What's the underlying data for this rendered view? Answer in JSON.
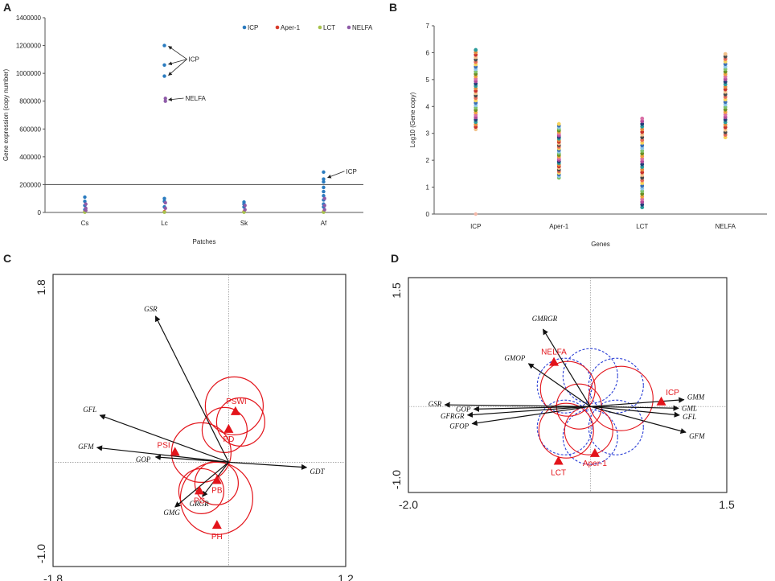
{
  "chart_data": [
    {
      "panel": "A",
      "type": "scatter",
      "title": "",
      "xlabel": "Patches",
      "ylabel": "Gene expression  (copy number)",
      "categories": [
        "Cs",
        "Lc",
        "Sk",
        "Af"
      ],
      "ylim": [
        0,
        1400000
      ],
      "yticks": [
        "0",
        "200000",
        "400000",
        "600000",
        "800000",
        "1000000",
        "1200000",
        "1400000"
      ],
      "threshold": 200000,
      "colors": {
        "ICP": "#2a7bbf",
        "Aper-1": "#d83a2a",
        "LCT": "#a6c24a",
        "NELFA": "#8e5ba8"
      },
      "series": [
        {
          "name": "ICP",
          "points": [
            [
              "Cs",
              110000
            ],
            [
              "Cs",
              80000
            ],
            [
              "Cs",
              50000
            ],
            [
              "Cs",
              20000
            ],
            [
              "Lc",
              1200000
            ],
            [
              "Lc",
              1060000
            ],
            [
              "Lc",
              980000
            ],
            [
              "Lc",
              100000
            ],
            [
              "Lc",
              80000
            ],
            [
              "Lc",
              40000
            ],
            [
              "Sk",
              75000
            ],
            [
              "Sk",
              60000
            ],
            [
              "Sk",
              40000
            ],
            [
              "Af",
              290000
            ],
            [
              "Af",
              240000
            ],
            [
              "Af",
              220000
            ],
            [
              "Af",
              180000
            ],
            [
              "Af",
              150000
            ],
            [
              "Af",
              120000
            ],
            [
              "Af",
              90000
            ],
            [
              "Af",
              60000
            ],
            [
              "Af",
              40000
            ]
          ]
        },
        {
          "name": "Aper-1",
          "points": [
            [
              "Cs",
              5000
            ],
            [
              "Lc",
              5000
            ],
            [
              "Sk",
              5000
            ],
            [
              "Af",
              5000
            ]
          ]
        },
        {
          "name": "LCT",
          "points": [
            [
              "Cs",
              2000
            ],
            [
              "Lc",
              2000
            ],
            [
              "Sk",
              2000
            ],
            [
              "Af",
              2000
            ]
          ]
        },
        {
          "name": "NELFA",
          "points": [
            [
              "Cs",
              60000
            ],
            [
              "Cs",
              30000
            ],
            [
              "Cs",
              15000
            ],
            [
              "Lc",
              820000
            ],
            [
              "Lc",
              800000
            ],
            [
              "Lc",
              70000
            ],
            [
              "Lc",
              30000
            ],
            [
              "Sk",
              50000
            ],
            [
              "Sk",
              20000
            ],
            [
              "Af",
              100000
            ],
            [
              "Af",
              50000
            ],
            [
              "Af",
              20000
            ]
          ]
        }
      ],
      "annotations": [
        {
          "text": "ICP",
          "category": "Lc",
          "targets": [
            1195000,
            1065000,
            985000
          ]
        },
        {
          "text": "NELFA",
          "category": "Lc",
          "targets": [
            810000
          ]
        },
        {
          "text": "ICP",
          "category": "Af",
          "targets": [
            250000
          ]
        }
      ]
    },
    {
      "panel": "B",
      "type": "scatter",
      "title": "",
      "xlabel": "Genes",
      "ylabel": "Log10 (Gene copy)",
      "categories": [
        "ICP",
        "Aper-1",
        "LCT",
        "NELFA"
      ],
      "ylim": [
        0,
        7
      ],
      "yticks": [
        "0",
        "1",
        "2",
        "3",
        "4",
        "5",
        "6",
        "7"
      ],
      "ranges": [
        {
          "category": "ICP",
          "min": 3.15,
          "max": 6.1,
          "outlier": 0.0
        },
        {
          "category": "Aper-1",
          "min": 1.35,
          "max": 3.35
        },
        {
          "category": "LCT",
          "min": 0.25,
          "max": 3.55
        },
        {
          "category": "NELFA",
          "min": 2.85,
          "max": 5.95
        }
      ],
      "palette": [
        "#f2c18a",
        "#e86b5a",
        "#3a6fb5",
        "#7cc36a",
        "#f0a040",
        "#b34b9b",
        "#2c9c9a",
        "#c9302c",
        "#4a4a4a",
        "#f7d35a",
        "#8ec6e8",
        "#6b8e23",
        "#d96fa6",
        "#1f3f7a",
        "#e58d3b"
      ]
    },
    {
      "panel": "C",
      "type": "biplot",
      "xlim": [
        -1.8,
        1.2
      ],
      "ylim": [
        -1.0,
        1.8
      ],
      "xtick_labels": [
        "-1.8",
        "1.2"
      ],
      "ytick_labels": [
        "1.8",
        "-1.0"
      ],
      "vectors": [
        {
          "label": "GSR",
          "x": -0.75,
          "y": 1.4
        },
        {
          "label": "GFL",
          "x": -1.32,
          "y": 0.45
        },
        {
          "label": "GFM",
          "x": -1.35,
          "y": 0.14
        },
        {
          "label": "GOP",
          "x": -0.75,
          "y": 0.05
        },
        {
          "label": "GDT",
          "x": 0.8,
          "y": -0.05
        },
        {
          "label": "GMG",
          "x": -0.55,
          "y": -0.43
        },
        {
          "label": "GRGR",
          "x": -0.27,
          "y": -0.33
        }
      ],
      "sites": [
        {
          "label": "PSWI",
          "x": 0.07,
          "y": 0.49
        },
        {
          "label": "PD",
          "x": 0.0,
          "y": 0.32
        },
        {
          "label": "PSI",
          "x": -0.55,
          "y": 0.1
        },
        {
          "label": "PB",
          "x": -0.12,
          "y": -0.17
        },
        {
          "label": "PC",
          "x": -0.3,
          "y": -0.27
        },
        {
          "label": "PH",
          "x": -0.12,
          "y": -0.6
        }
      ]
    },
    {
      "panel": "D",
      "type": "biplot",
      "xlim": [
        -2.0,
        1.5
      ],
      "ylim": [
        -1.0,
        1.5
      ],
      "xtick_labels": [
        "-2.0",
        "1.5"
      ],
      "ytick_labels": [
        "1.5",
        "-1.0"
      ],
      "vectors": [
        {
          "label": "GMRGR",
          "x": -0.52,
          "y": 0.9
        },
        {
          "label": "GMOP",
          "x": -0.68,
          "y": 0.5
        },
        {
          "label": "GSR",
          "x": -1.6,
          "y": 0.02
        },
        {
          "label": "GOP",
          "x": -1.28,
          "y": -0.03
        },
        {
          "label": "GFRGR",
          "x": -1.35,
          "y": -0.1
        },
        {
          "label": "GFOP",
          "x": -1.3,
          "y": -0.2
        },
        {
          "label": "GMM",
          "x": 1.03,
          "y": 0.08
        },
        {
          "label": "GML",
          "x": 0.97,
          "y": -0.02
        },
        {
          "label": "GFL",
          "x": 0.98,
          "y": -0.1
        },
        {
          "label": "GFM",
          "x": 1.05,
          "y": -0.3
        }
      ],
      "sites": [
        {
          "label": "NELFA",
          "x": -0.4,
          "y": 0.52
        },
        {
          "label": "ICP",
          "x": 0.78,
          "y": 0.06
        },
        {
          "label": "Aper-1",
          "x": 0.05,
          "y": -0.54
        },
        {
          "label": "LCT",
          "x": -0.35,
          "y": -0.63
        }
      ]
    }
  ]
}
